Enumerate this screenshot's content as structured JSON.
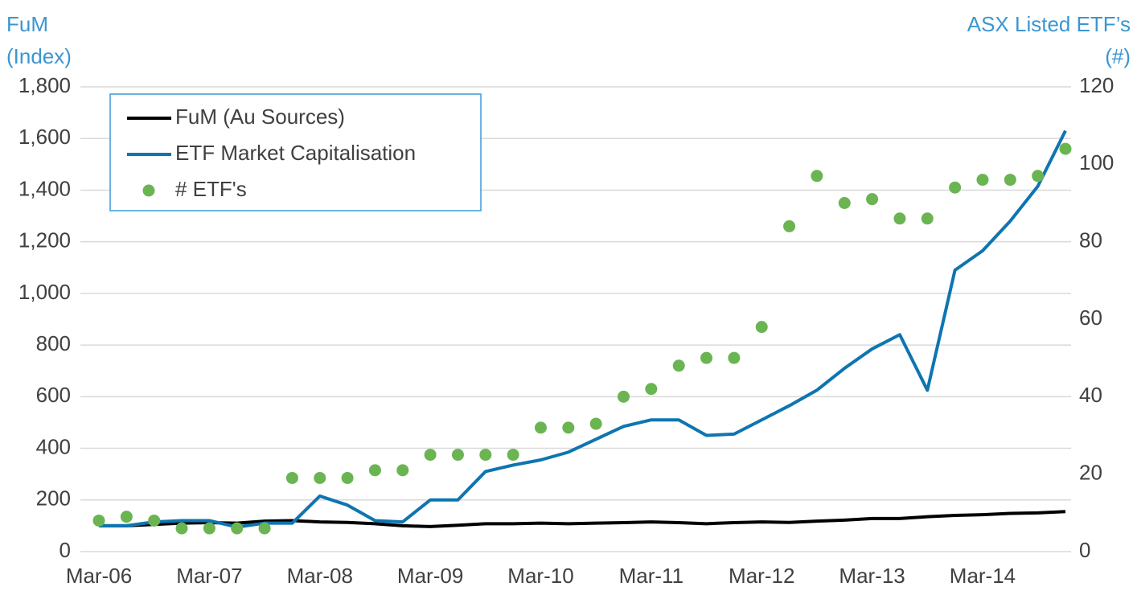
{
  "chart_data": {
    "type": "line",
    "y_label": [
      "FuM",
      "(Index)"
    ],
    "y2_label": [
      "ASX Listed ETF’s",
      "(#)"
    ],
    "categories": [
      "Mar-06",
      null,
      null,
      null,
      "Mar-07",
      null,
      null,
      null,
      "Mar-08",
      null,
      null,
      null,
      "Mar-09",
      null,
      null,
      null,
      "Mar-10",
      null,
      null,
      null,
      "Mar-11",
      null,
      null,
      null,
      "Mar-12",
      null,
      null,
      null,
      "Mar-13",
      null,
      null,
      null,
      "Mar-14",
      null,
      null,
      null
    ],
    "series": [
      {
        "name": "FuM (Au Sources)",
        "color": "#000000",
        "type": "line",
        "values": [
          100,
          100,
          105,
          110,
          112,
          110,
          118,
          120,
          115,
          113,
          108,
          100,
          97,
          102,
          108,
          108,
          110,
          108,
          110,
          112,
          115,
          112,
          108,
          112,
          115,
          113,
          118,
          122,
          128,
          128,
          135,
          140,
          143,
          148,
          150,
          155
        ]
      },
      {
        "name": "ETF Market Capitalisation",
        "color": "#0e75b0",
        "type": "line",
        "values": [
          100,
          100,
          115,
          120,
          120,
          95,
          110,
          110,
          215,
          180,
          120,
          115,
          200,
          200,
          310,
          335,
          355,
          385,
          435,
          485,
          510,
          510,
          450,
          455,
          510,
          565,
          625,
          710,
          785,
          840,
          625,
          1090,
          1165,
          1280,
          1415,
          1630
        ]
      },
      {
        "name": "# ETF's",
        "color": "#6ab552",
        "type": "scatter",
        "axis": "y2",
        "values": [
          8,
          9,
          8,
          6,
          6,
          6,
          6,
          19,
          19,
          19,
          21,
          21,
          25,
          25,
          25,
          25,
          32,
          32,
          33,
          40,
          42,
          48,
          50,
          50,
          58,
          84,
          97,
          90,
          91,
          86,
          86,
          94,
          96,
          96,
          97,
          104
        ]
      }
    ],
    "ylim": [
      0,
      1800
    ],
    "yticks": [
      0,
      200,
      400,
      600,
      800,
      {
        "value": 1000,
        "label": "1,000"
      },
      {
        "value": 1200,
        "label": "1,200"
      },
      {
        "value": 1400,
        "label": "1,400"
      },
      {
        "value": 1600,
        "label": "1,600"
      },
      {
        "value": 1800,
        "label": "1,800"
      }
    ],
    "y2lim": [
      0,
      120
    ],
    "y2ticks": [
      0,
      20,
      40,
      60,
      80,
      100,
      120
    ],
    "grid": true,
    "legend": "upper left"
  }
}
